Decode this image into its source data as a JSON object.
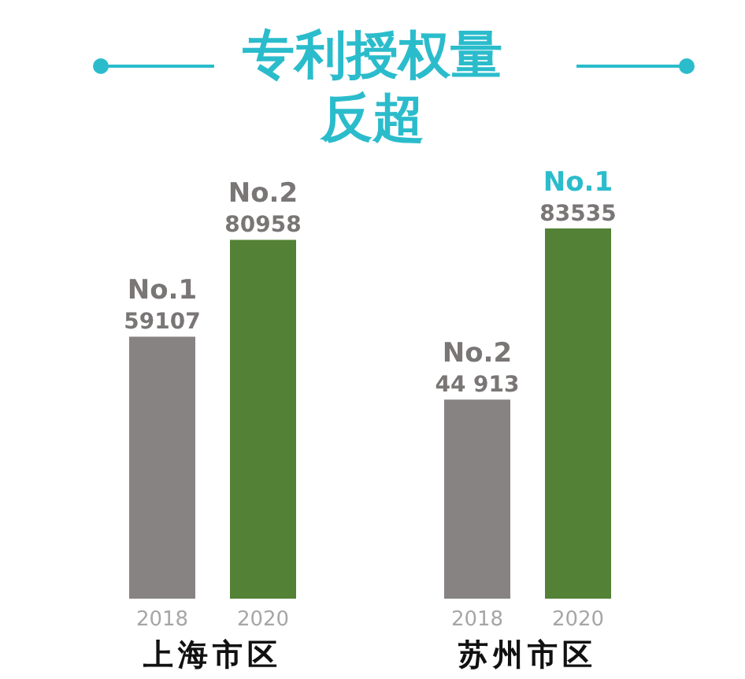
{
  "chart_data": {
    "type": "bar",
    "title": "专利授权量反超",
    "categories": [
      "上海市区",
      "苏州市区"
    ],
    "series": [
      {
        "name": "2018",
        "color": "#878383",
        "values": [
          59107,
          44913
        ],
        "value_labels": [
          "59107",
          "44 913"
        ]
      },
      {
        "name": "2020",
        "color": "#538135",
        "values": [
          80958,
          83535
        ],
        "value_labels": [
          "80958",
          "83535"
        ]
      }
    ],
    "annotations": [
      "No.1",
      "No.2",
      "No.2",
      "No.1"
    ]
  }
}
